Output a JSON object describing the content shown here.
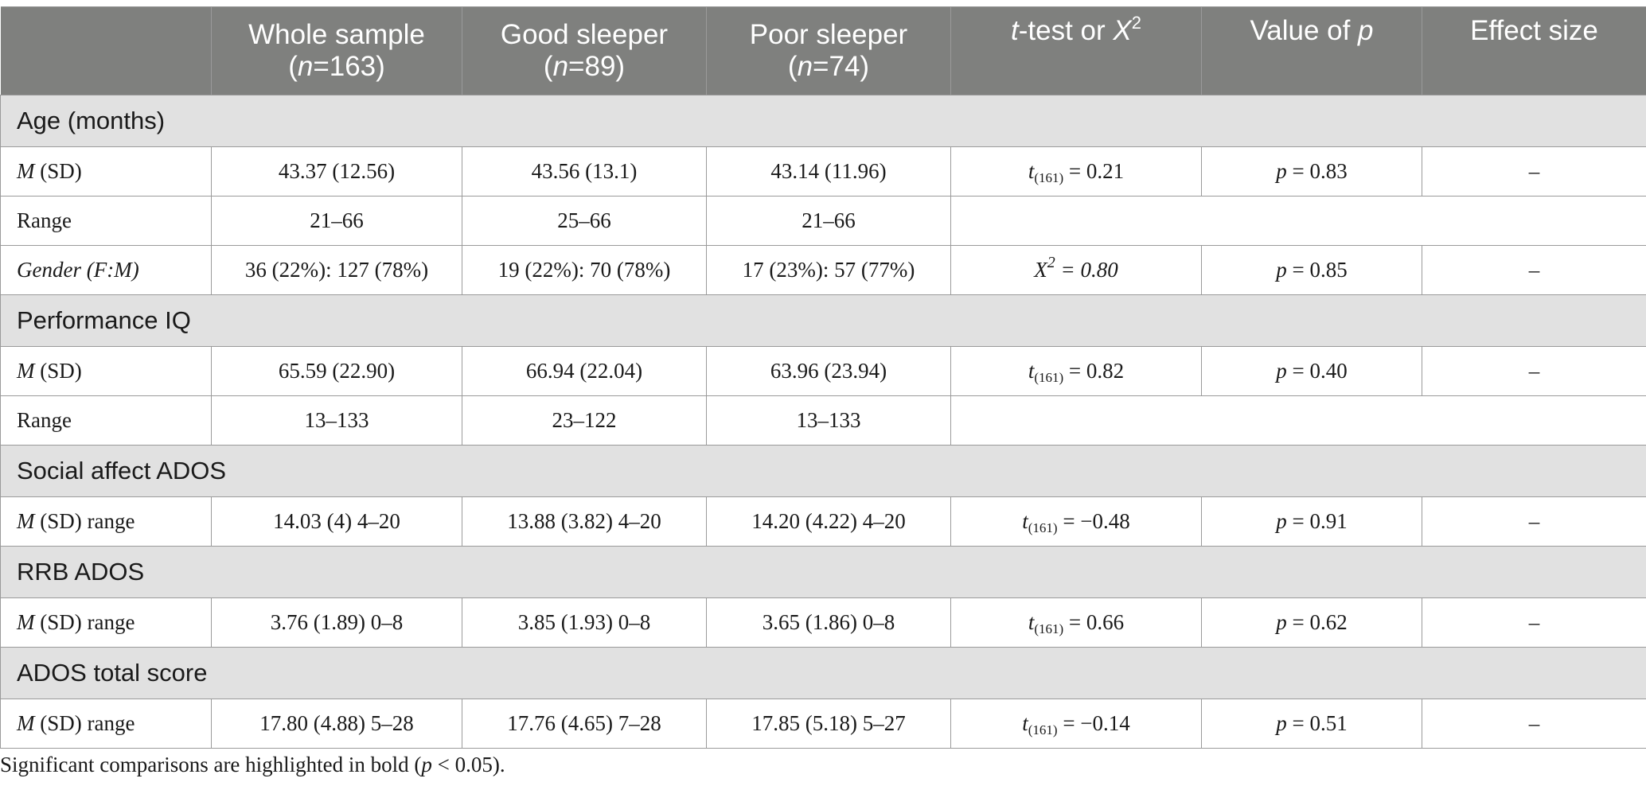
{
  "header": {
    "whole_sample_line1": "Whole sample",
    "whole_sample_n_open": "(",
    "whole_sample_n": "n",
    "whole_sample_n_val": "=163)",
    "good_sleeper_line1": "Good sleeper",
    "good_sleeper_n_open": "(",
    "good_sleeper_n": "n",
    "good_sleeper_n_val": "=89)",
    "poor_sleeper_line1": "Poor sleeper",
    "poor_sleeper_n_open": "(",
    "poor_sleeper_n": "n",
    "poor_sleeper_n_val": "=74)",
    "ttest_t": "t",
    "ttest_mid": "-test or ",
    "ttest_x": "X",
    "ttest_sup": "2",
    "pvalue_text": "Value of ",
    "pvalue_p": "p",
    "effect_size": "Effect size"
  },
  "sections": {
    "age": "Age (months)",
    "piq": "Performance IQ",
    "sa": "Social affect ADOS",
    "rrb": "RRB ADOS",
    "total": "ADOS total score"
  },
  "rows": {
    "age_msd": {
      "label_m": "M",
      "label_rest": " (SD)",
      "whole": "43.37 (12.56)",
      "good": "43.56 (13.1)",
      "poor": "43.14 (11.96)",
      "test_t": "t",
      "test_sub": "(161)",
      "test_val": " = 0.21",
      "p_p": "p",
      "p_val": " = 0.83",
      "effect": "–"
    },
    "age_range": {
      "label": "Range",
      "whole": "21–66",
      "good": "25–66",
      "poor": "21–66"
    },
    "gender": {
      "label": "Gender (F:M)",
      "whole": "36 (22%): 127 (78%)",
      "good": "19 (22%): 70 (78%)",
      "poor": "17 (23%): 57 (77%)",
      "test_x": "X",
      "test_sup": "2",
      "test_val": " = 0.80",
      "p_p": "p",
      "p_val": " = 0.85",
      "effect": "–"
    },
    "piq_msd": {
      "label_m": "M",
      "label_rest": " (SD)",
      "whole": "65.59 (22.90)",
      "good": "66.94 (22.04)",
      "poor": "63.96 (23.94)",
      "test_t": "t",
      "test_sub": "(161)",
      "test_val": " = 0.82",
      "p_p": "p",
      "p_val": " = 0.40",
      "effect": "–"
    },
    "piq_range": {
      "label": "Range",
      "whole": "13–133",
      "good": "23–122",
      "poor": "13–133"
    },
    "sa_msd": {
      "label_m": "M",
      "label_rest": " (SD) range",
      "whole": "14.03 (4) 4–20",
      "good": "13.88 (3.82) 4–20",
      "poor": "14.20 (4.22) 4–20",
      "test_t": "t",
      "test_sub": "(161)",
      "test_val": " = −0.48",
      "p_p": "p",
      "p_val": " = 0.91",
      "effect": "–"
    },
    "rrb_msd": {
      "label_m": "M",
      "label_rest": " (SD) range",
      "whole": "3.76 (1.89) 0–8",
      "good": "3.85 (1.93) 0–8",
      "poor": "3.65 (1.86) 0–8",
      "test_t": "t",
      "test_sub": "(161)",
      "test_val": " = 0.66",
      "p_p": "p",
      "p_val": " = 0.62",
      "effect": "–"
    },
    "total_msd": {
      "label_m": "M",
      "label_rest": " (SD) range",
      "whole": "17.80 (4.88) 5–28",
      "good": "17.76 (4.65) 7–28",
      "poor": "17.85 (5.18) 5–27",
      "test_t": "t",
      "test_sub": "(161)",
      "test_val": " = −0.14",
      "p_p": "p",
      "p_val": " = 0.51",
      "effect": "–"
    }
  },
  "footnote": {
    "text_before": "Significant comparisons are highlighted in bold (",
    "p": "p",
    "text_after": " < 0.05)."
  },
  "colors": {
    "header_bg": "#7f807e",
    "section_bg": "#e1e1e1",
    "border": "#9a9a9a"
  }
}
